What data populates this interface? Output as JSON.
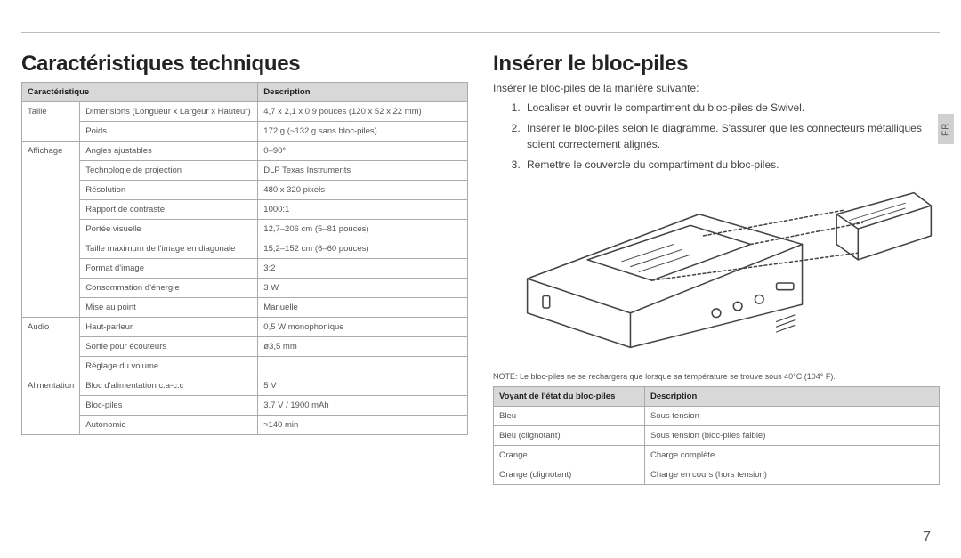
{
  "page_number": "7",
  "lang_tab": "FR",
  "left": {
    "heading": "Caractéristiques techniques",
    "table": {
      "headers": [
        "Caractéristique",
        "",
        "Description"
      ],
      "rows": [
        [
          "Taille",
          "Dimensions (Longueur x Largeur x Hauteur)",
          "4,7 x 2,1 x 0,9 pouces (120 x 52 x 22 mm)"
        ],
        [
          "",
          "Poids",
          "172 g (~132 g sans bloc-piles)"
        ],
        [
          "Affichage",
          "Angles ajustables",
          "0–90°"
        ],
        [
          "",
          "Technologie de projection",
          "DLP Texas Instruments"
        ],
        [
          "",
          "Résolution",
          "480 x 320 pixels"
        ],
        [
          "",
          "Rapport de contraste",
          "1000:1"
        ],
        [
          "",
          "Portée visuelle",
          "12,7–206 cm (5–81 pouces)"
        ],
        [
          "",
          "Taille maximum de l'image en diagonale",
          "15,2–152 cm (6–60 pouces)"
        ],
        [
          "",
          "Format d'image",
          "3:2"
        ],
        [
          "",
          "Consommation d'énergie",
          "3 W"
        ],
        [
          "",
          "Mise au point",
          "Manuelle"
        ],
        [
          "Audio",
          "Haut-parleur",
          "0,5 W monophonique"
        ],
        [
          "",
          "Sortie pour écouteurs",
          "ø3,5 mm"
        ],
        [
          "",
          "Réglage du volume",
          ""
        ],
        [
          "Alimentation",
          "Bloc d'alimentation c.a-c.c",
          "5 V"
        ],
        [
          "",
          "Bloc-piles",
          "3,7 V / 1900 mAh"
        ],
        [
          "",
          "Autonomie",
          "≈140 min"
        ]
      ],
      "rowspans": {
        "0": 2,
        "2": 9,
        "11": 3,
        "14": 3
      }
    }
  },
  "right": {
    "heading": "Insérer le bloc-piles",
    "intro": "Insérer le bloc-piles de la manière suivante:",
    "steps": [
      "Localiser et ouvrir le compartiment du bloc-piles de Swivel.",
      "Insérer le bloc-piles selon le diagramme. S'assurer que les connecteurs métalliques soient correctement alignés.",
      "Remettre le couvercle du compartiment du bloc-piles."
    ],
    "note": "NOTE: Le bloc-piles ne se rechargera que lorsque sa température se trouve sous 40°C (104° F).",
    "status_table": {
      "headers": [
        "Voyant de l'état du bloc-piles",
        "Description"
      ],
      "rows": [
        [
          "Bleu",
          "Sous tension"
        ],
        [
          "Bleu (clignotant)",
          "Sous tension (bloc-piles faible)"
        ],
        [
          "Orange",
          "Charge complète"
        ],
        [
          "Orange (clignotant)",
          "Charge en cours (hors tension)"
        ]
      ]
    }
  },
  "colors": {
    "header_bg": "#d8d8d8",
    "border": "#aaaaaa",
    "text": "#444444",
    "diagram_stroke": "#444444"
  }
}
